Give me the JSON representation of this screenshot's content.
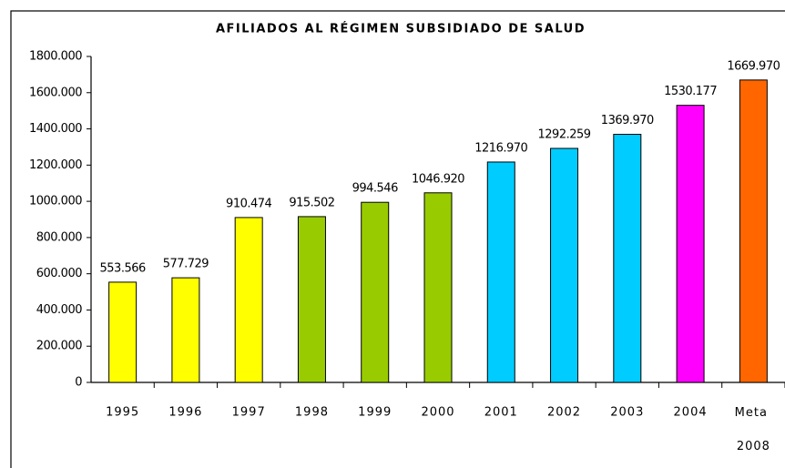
{
  "chart_data": {
    "type": "bar",
    "title": "AFILIADOS AL RÉGIMEN SUBSIDIADO DE SALUD",
    "categories": [
      "1995",
      "1996",
      "1997",
      "1998",
      "1999",
      "2000",
      "2001",
      "2002",
      "2003",
      "2004",
      "Meta 2008"
    ],
    "values": [
      553566,
      577729,
      910474,
      915502,
      994546,
      1046920,
      1216970,
      1292259,
      1369970,
      1530177,
      1669970
    ],
    "value_labels": [
      "553.566",
      "577.729",
      "910.474",
      "915.502",
      "994.546",
      "1046.920",
      "1216.970",
      "1292.259",
      "1369.970",
      "1530.177",
      "1669.970"
    ],
    "colors": [
      "#ffff00",
      "#ffff00",
      "#ffff00",
      "#99cc00",
      "#99cc00",
      "#99cc00",
      "#00ccff",
      "#00ccff",
      "#00ccff",
      "#ff00ff",
      "#ff6600"
    ],
    "ylim": [
      0,
      1800000
    ],
    "yticks": [
      0,
      {
        "value": 200000,
        "label": "200.000"
      },
      {
        "value": 400000,
        "label": "400.000"
      },
      {
        "value": 600000,
        "label": "600.000"
      },
      {
        "value": 800000,
        "label": "800.000"
      },
      {
        "value": 1000000,
        "label": "1000.000"
      },
      {
        "value": 1200000,
        "label": "1200.000"
      },
      {
        "value": 1400000,
        "label": "1400.000"
      },
      {
        "value": 1600000,
        "label": "1600.000"
      },
      {
        "value": 1800000,
        "label": "1800.000"
      }
    ],
    "grid": false
  }
}
